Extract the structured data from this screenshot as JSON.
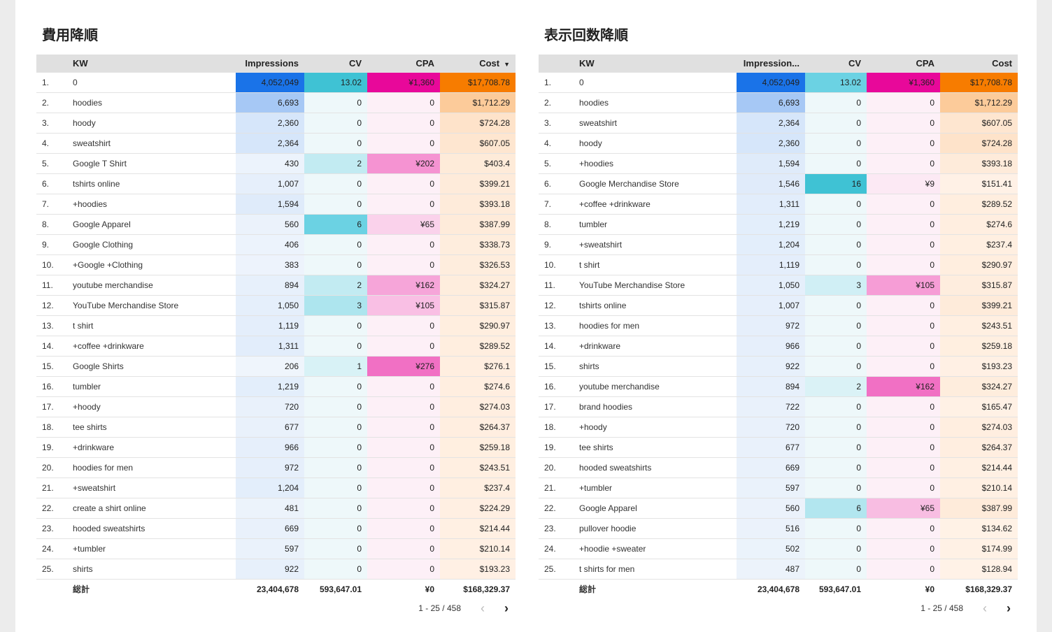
{
  "tables": [
    {
      "title": "費用降順",
      "headers": {
        "kw": "KW",
        "impressions": "Impressions",
        "cv": "CV",
        "cpa": "CPA",
        "cost": "Cost"
      },
      "sort_indicator": "▼",
      "rows": [
        {
          "idx": "1.",
          "kw": "0",
          "impressions": "4,052,049",
          "cv": "13.02",
          "cpa": "¥1,360",
          "cost": "$17,708.78"
        },
        {
          "idx": "2.",
          "kw": "hoodies",
          "impressions": "6,693",
          "cv": "0",
          "cpa": "0",
          "cost": "$1,712.29"
        },
        {
          "idx": "3.",
          "kw": "hoody",
          "impressions": "2,360",
          "cv": "0",
          "cpa": "0",
          "cost": "$724.28"
        },
        {
          "idx": "4.",
          "kw": "sweatshirt",
          "impressions": "2,364",
          "cv": "0",
          "cpa": "0",
          "cost": "$607.05"
        },
        {
          "idx": "5.",
          "kw": "Google T Shirt",
          "impressions": "430",
          "cv": "2",
          "cpa": "¥202",
          "cost": "$403.4"
        },
        {
          "idx": "6.",
          "kw": "tshirts online",
          "impressions": "1,007",
          "cv": "0",
          "cpa": "0",
          "cost": "$399.21"
        },
        {
          "idx": "7.",
          "kw": "+hoodies",
          "impressions": "1,594",
          "cv": "0",
          "cpa": "0",
          "cost": "$393.18"
        },
        {
          "idx": "8.",
          "kw": "Google Apparel",
          "impressions": "560",
          "cv": "6",
          "cpa": "¥65",
          "cost": "$387.99"
        },
        {
          "idx": "9.",
          "kw": "Google Clothing",
          "impressions": "406",
          "cv": "0",
          "cpa": "0",
          "cost": "$338.73"
        },
        {
          "idx": "10.",
          "kw": "+Google +Clothing",
          "impressions": "383",
          "cv": "0",
          "cpa": "0",
          "cost": "$326.53"
        },
        {
          "idx": "11.",
          "kw": "youtube merchandise",
          "impressions": "894",
          "cv": "2",
          "cpa": "¥162",
          "cost": "$324.27"
        },
        {
          "idx": "12.",
          "kw": "YouTube Merchandise Store",
          "impressions": "1,050",
          "cv": "3",
          "cpa": "¥105",
          "cost": "$315.87"
        },
        {
          "idx": "13.",
          "kw": "t shirt",
          "impressions": "1,119",
          "cv": "0",
          "cpa": "0",
          "cost": "$290.97"
        },
        {
          "idx": "14.",
          "kw": "+coffee +drinkware",
          "impressions": "1,311",
          "cv": "0",
          "cpa": "0",
          "cost": "$289.52"
        },
        {
          "idx": "15.",
          "kw": "Google Shirts",
          "impressions": "206",
          "cv": "1",
          "cpa": "¥276",
          "cost": "$276.1"
        },
        {
          "idx": "16.",
          "kw": "tumbler",
          "impressions": "1,219",
          "cv": "0",
          "cpa": "0",
          "cost": "$274.6"
        },
        {
          "idx": "17.",
          "kw": "+hoody",
          "impressions": "720",
          "cv": "0",
          "cpa": "0",
          "cost": "$274.03"
        },
        {
          "idx": "18.",
          "kw": "tee shirts",
          "impressions": "677",
          "cv": "0",
          "cpa": "0",
          "cost": "$264.37"
        },
        {
          "idx": "19.",
          "kw": "+drinkware",
          "impressions": "966",
          "cv": "0",
          "cpa": "0",
          "cost": "$259.18"
        },
        {
          "idx": "20.",
          "kw": "hoodies for men",
          "impressions": "972",
          "cv": "0",
          "cpa": "0",
          "cost": "$243.51"
        },
        {
          "idx": "21.",
          "kw": "+sweatshirt",
          "impressions": "1,204",
          "cv": "0",
          "cpa": "0",
          "cost": "$237.4"
        },
        {
          "idx": "22.",
          "kw": "create a shirt online",
          "impressions": "481",
          "cv": "0",
          "cpa": "0",
          "cost": "$224.29"
        },
        {
          "idx": "23.",
          "kw": "hooded sweatshirts",
          "impressions": "669",
          "cv": "0",
          "cpa": "0",
          "cost": "$214.44"
        },
        {
          "idx": "24.",
          "kw": "+tumbler",
          "impressions": "597",
          "cv": "0",
          "cpa": "0",
          "cost": "$210.14"
        },
        {
          "idx": "25.",
          "kw": "shirts",
          "impressions": "922",
          "cv": "0",
          "cpa": "0",
          "cost": "$193.23"
        }
      ],
      "total": {
        "label": "総計",
        "impressions": "23,404,678",
        "cv": "593,647.01",
        "cpa": "¥0",
        "cost": "$168,329.37"
      },
      "pager": {
        "range": "1 - 25 / 458",
        "prev": "‹",
        "next": "›"
      }
    },
    {
      "title": "表示回数降順",
      "headers": {
        "kw": "KW",
        "impressions": "Impression...",
        "cv": "CV",
        "cpa": "CPA",
        "cost": "Cost"
      },
      "sort_indicator": "",
      "rows": [
        {
          "idx": "1.",
          "kw": "0",
          "impressions": "4,052,049",
          "cv": "13.02",
          "cpa": "¥1,360",
          "cost": "$17,708.78"
        },
        {
          "idx": "2.",
          "kw": "hoodies",
          "impressions": "6,693",
          "cv": "0",
          "cpa": "0",
          "cost": "$1,712.29"
        },
        {
          "idx": "3.",
          "kw": "sweatshirt",
          "impressions": "2,364",
          "cv": "0",
          "cpa": "0",
          "cost": "$607.05"
        },
        {
          "idx": "4.",
          "kw": "hoody",
          "impressions": "2,360",
          "cv": "0",
          "cpa": "0",
          "cost": "$724.28"
        },
        {
          "idx": "5.",
          "kw": "+hoodies",
          "impressions": "1,594",
          "cv": "0",
          "cpa": "0",
          "cost": "$393.18"
        },
        {
          "idx": "6.",
          "kw": "Google Merchandise Store",
          "impressions": "1,546",
          "cv": "16",
          "cpa": "¥9",
          "cost": "$151.41"
        },
        {
          "idx": "7.",
          "kw": "+coffee +drinkware",
          "impressions": "1,311",
          "cv": "0",
          "cpa": "0",
          "cost": "$289.52"
        },
        {
          "idx": "8.",
          "kw": "tumbler",
          "impressions": "1,219",
          "cv": "0",
          "cpa": "0",
          "cost": "$274.6"
        },
        {
          "idx": "9.",
          "kw": "+sweatshirt",
          "impressions": "1,204",
          "cv": "0",
          "cpa": "0",
          "cost": "$237.4"
        },
        {
          "idx": "10.",
          "kw": "t shirt",
          "impressions": "1,119",
          "cv": "0",
          "cpa": "0",
          "cost": "$290.97"
        },
        {
          "idx": "11.",
          "kw": "YouTube Merchandise Store",
          "impressions": "1,050",
          "cv": "3",
          "cpa": "¥105",
          "cost": "$315.87"
        },
        {
          "idx": "12.",
          "kw": "tshirts online",
          "impressions": "1,007",
          "cv": "0",
          "cpa": "0",
          "cost": "$399.21"
        },
        {
          "idx": "13.",
          "kw": "hoodies for men",
          "impressions": "972",
          "cv": "0",
          "cpa": "0",
          "cost": "$243.51"
        },
        {
          "idx": "14.",
          "kw": "+drinkware",
          "impressions": "966",
          "cv": "0",
          "cpa": "0",
          "cost": "$259.18"
        },
        {
          "idx": "15.",
          "kw": "shirts",
          "impressions": "922",
          "cv": "0",
          "cpa": "0",
          "cost": "$193.23"
        },
        {
          "idx": "16.",
          "kw": "youtube merchandise",
          "impressions": "894",
          "cv": "2",
          "cpa": "¥162",
          "cost": "$324.27"
        },
        {
          "idx": "17.",
          "kw": "brand hoodies",
          "impressions": "722",
          "cv": "0",
          "cpa": "0",
          "cost": "$165.47"
        },
        {
          "idx": "18.",
          "kw": "+hoody",
          "impressions": "720",
          "cv": "0",
          "cpa": "0",
          "cost": "$274.03"
        },
        {
          "idx": "19.",
          "kw": "tee shirts",
          "impressions": "677",
          "cv": "0",
          "cpa": "0",
          "cost": "$264.37"
        },
        {
          "idx": "20.",
          "kw": "hooded sweatshirts",
          "impressions": "669",
          "cv": "0",
          "cpa": "0",
          "cost": "$214.44"
        },
        {
          "idx": "21.",
          "kw": "+tumbler",
          "impressions": "597",
          "cv": "0",
          "cpa": "0",
          "cost": "$210.14"
        },
        {
          "idx": "22.",
          "kw": "Google Apparel",
          "impressions": "560",
          "cv": "6",
          "cpa": "¥65",
          "cost": "$387.99"
        },
        {
          "idx": "23.",
          "kw": "pullover hoodie",
          "impressions": "516",
          "cv": "0",
          "cpa": "0",
          "cost": "$134.62"
        },
        {
          "idx": "24.",
          "kw": "+hoodie +sweater",
          "impressions": "502",
          "cv": "0",
          "cpa": "0",
          "cost": "$174.99"
        },
        {
          "idx": "25.",
          "kw": "t shirts for men",
          "impressions": "487",
          "cv": "0",
          "cpa": "0",
          "cost": "$128.94"
        }
      ],
      "total": {
        "label": "総計",
        "impressions": "23,404,678",
        "cv": "593,647.01",
        "cpa": "¥0",
        "cost": "$168,329.37"
      },
      "pager": {
        "range": "1 - 25 / 458",
        "prev": "‹",
        "next": "›"
      }
    }
  ],
  "colors": {
    "impressions_max": "#1a73e8",
    "cv_max": "#3fc2d4",
    "cv_mid": "#00b2d0",
    "cpa_max": "#e8089a",
    "cost_max": "#f77c00",
    "impressions_bg": "#f1f6fc",
    "cv_bg": "#eef8fa",
    "cpa_bg": "#fdf0f7",
    "cost_bg": "#fff5ed"
  }
}
